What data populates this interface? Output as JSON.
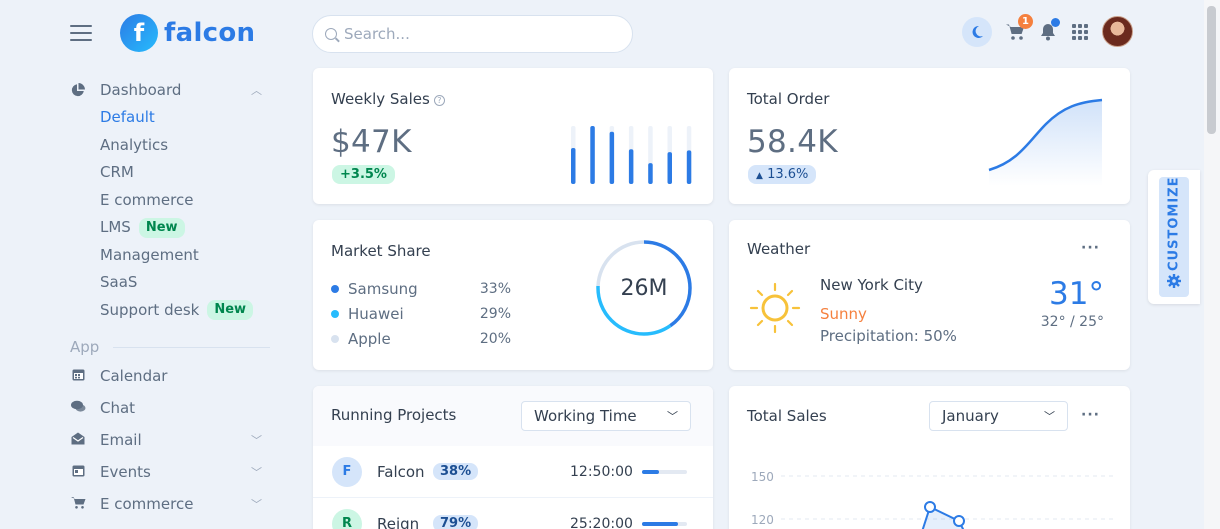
{
  "brand": {
    "name": "falcon",
    "mark": "f"
  },
  "search": {
    "placeholder": "Search..."
  },
  "topbar": {
    "cart_count": "1"
  },
  "nav": {
    "dashboard_label": "Dashboard",
    "dashboard_items": [
      {
        "label": "Default"
      },
      {
        "label": "Analytics"
      },
      {
        "label": "CRM"
      },
      {
        "label": "E commerce"
      },
      {
        "label": "LMS",
        "badge": "New"
      },
      {
        "label": "Management"
      },
      {
        "label": "SaaS"
      },
      {
        "label": "Support desk",
        "badge": "New"
      }
    ],
    "app_label": "App",
    "app_items": [
      {
        "label": "Calendar"
      },
      {
        "label": "Chat"
      },
      {
        "label": "Email"
      },
      {
        "label": "Events"
      },
      {
        "label": "E commerce"
      }
    ]
  },
  "weekly_sales": {
    "title": "Weekly Sales",
    "value": "$47K",
    "change": "+3.5%",
    "bars": [
      0.62,
      1.0,
      0.9,
      0.6,
      0.36,
      0.55,
      0.58
    ]
  },
  "total_order": {
    "title": "Total Order",
    "value": "58.4K",
    "change": "13.6%",
    "change_icon": "caret-up"
  },
  "market_share": {
    "title": "Market Share",
    "center": "26M",
    "items": [
      {
        "name": "Samsung",
        "pct": "33%",
        "color": "#2c7be5"
      },
      {
        "name": "Huawei",
        "pct": "29%",
        "color": "#27bcfd"
      },
      {
        "name": "Apple",
        "pct": "20%",
        "color": "#d8e2ef"
      }
    ]
  },
  "weather": {
    "title": "Weather",
    "city": "New York City",
    "condition": "Sunny",
    "precipitation": "Precipitation: 50%",
    "temp": "31°",
    "range": "32° / 25°"
  },
  "projects": {
    "title": "Running Projects",
    "filter": "Working Time",
    "rows": [
      {
        "initial": "F",
        "name": "Falcon",
        "pct": "38%",
        "time": "12:50:00",
        "progress": 0.38,
        "bg": "#d5e5fa",
        "fg": "#2c7be5"
      },
      {
        "initial": "R",
        "name": "Reign",
        "pct": "79%",
        "time": "25:20:00",
        "progress": 0.79,
        "bg": "#ccf6e4",
        "fg": "#00864e"
      }
    ]
  },
  "total_sales": {
    "title": "Total Sales",
    "month": "January",
    "y_ticks": [
      "150",
      "120"
    ]
  },
  "customize": {
    "label": "CUSTOMIZE"
  },
  "colors": {
    "primary": "#2c7be5",
    "success": "#00864e",
    "warning": "#f5803e"
  }
}
